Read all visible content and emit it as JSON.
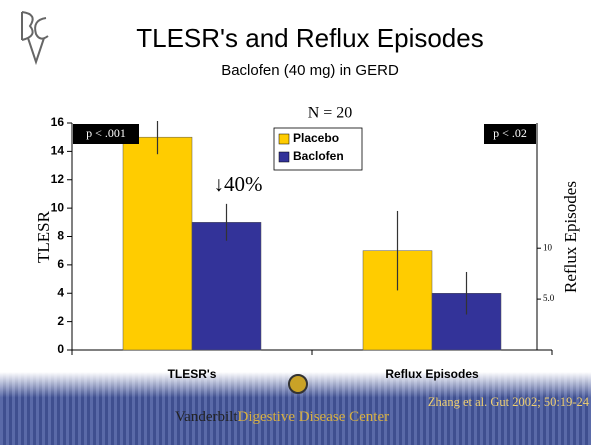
{
  "chart_data": {
    "type": "bar",
    "title": "TLESR's and Reflux Episodes",
    "subtitle": "Baclofen (40 mg) in GERD",
    "categories": [
      "TLESR's",
      "Reflux Episodes"
    ],
    "series": [
      {
        "name": "Placebo",
        "color": "#ffcc00",
        "values": [
          15,
          7
        ],
        "errors": [
          1.2,
          2.8
        ]
      },
      {
        "name": "Baclofen",
        "color": "#333399",
        "values": [
          9,
          4
        ],
        "errors": [
          1.3,
          1.5
        ]
      }
    ],
    "ylabel": "TLESR",
    "ylim": [
      0,
      16
    ],
    "yticks": [
      0,
      2,
      4,
      6,
      8,
      10,
      12,
      14,
      16
    ],
    "y2label": "Reflux Episodes",
    "y2lim": [
      0,
      22.3
    ],
    "y2ticks": [
      {
        "value": 5,
        "label": "5.0"
      },
      10
    ],
    "annotations": [
      "N = 20",
      "p < .001",
      "p < .02",
      "↓40%"
    ],
    "source": "Zhang et al. Gut 2002; 50:19-24"
  },
  "footer": {
    "brand_1": "Vanderbilt",
    "brand_2": "Digestive Disease Center"
  }
}
